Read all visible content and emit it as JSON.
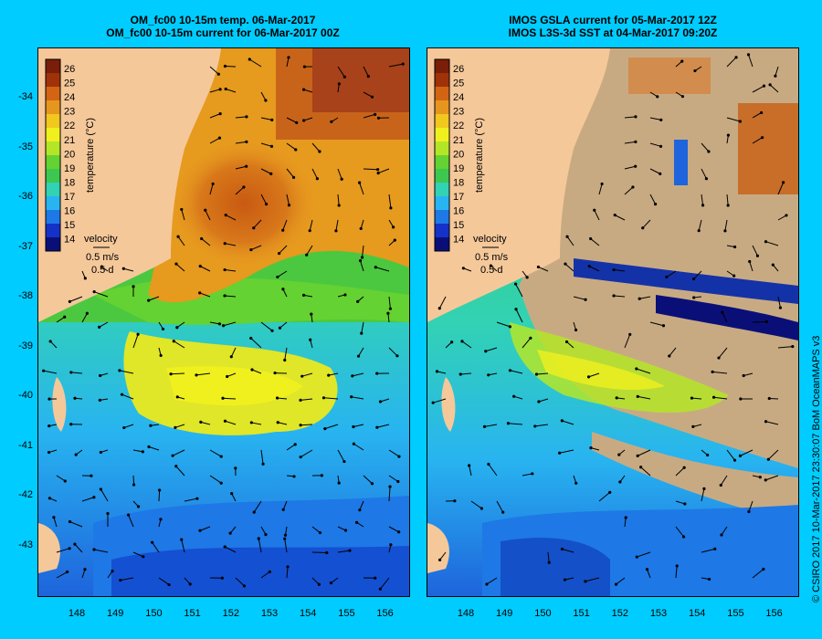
{
  "left_panel": {
    "title_line1": "OM_fc00 10-15m temp. 06-Mar-2017",
    "title_line2": "OM_fc00 10-15m current for 06-Mar-2017 00Z",
    "colorbar": {
      "label": "temperature (°C)",
      "ticks": [
        "26",
        "25",
        "24",
        "23",
        "22",
        "21",
        "20",
        "19",
        "18",
        "17",
        "16",
        "15",
        "14"
      ]
    },
    "velocity_legend": {
      "title": "velocity",
      "speed": "0.5 m/s",
      "duration": "0.5 d"
    }
  },
  "right_panel": {
    "title_line1": "IMOS GSLA current for 05-Mar-2017 12Z",
    "title_line2": "IMOS L3S-3d SST at 04-Mar-2017 09:20Z",
    "colorbar": {
      "label": "temperature (°C)",
      "ticks": [
        "26",
        "25",
        "24",
        "23",
        "22",
        "21",
        "20",
        "19",
        "18",
        "17",
        "16",
        "15",
        "14"
      ]
    },
    "velocity_legend": {
      "title": "velocity",
      "speed": "0.5 m/s",
      "duration": "0.5 d"
    }
  },
  "axes": {
    "lat_ticks": [
      "-34",
      "-35",
      "-36",
      "-37",
      "-38",
      "-39",
      "-40",
      "-41",
      "-42",
      "-43"
    ],
    "lon_ticks": [
      "148",
      "149",
      "150",
      "151",
      "152",
      "153",
      "154",
      "155",
      "156"
    ]
  },
  "credit": "© CSIRO 2017   10-Mar-2017 23:30:07 BoM OceanMAPS v3",
  "colors": {
    "background": "#00ccff",
    "land": "#f5c89a",
    "missing_data": "#c8aa82",
    "temp_scale": [
      "#0a0f78",
      "#1432c8",
      "#1e78e6",
      "#28b4f0",
      "#32d2b4",
      "#3cc850",
      "#64d232",
      "#b4e628",
      "#f0f01e",
      "#f0c81e",
      "#e6961e",
      "#d26414",
      "#a0320a",
      "#7a1e0a"
    ]
  }
}
